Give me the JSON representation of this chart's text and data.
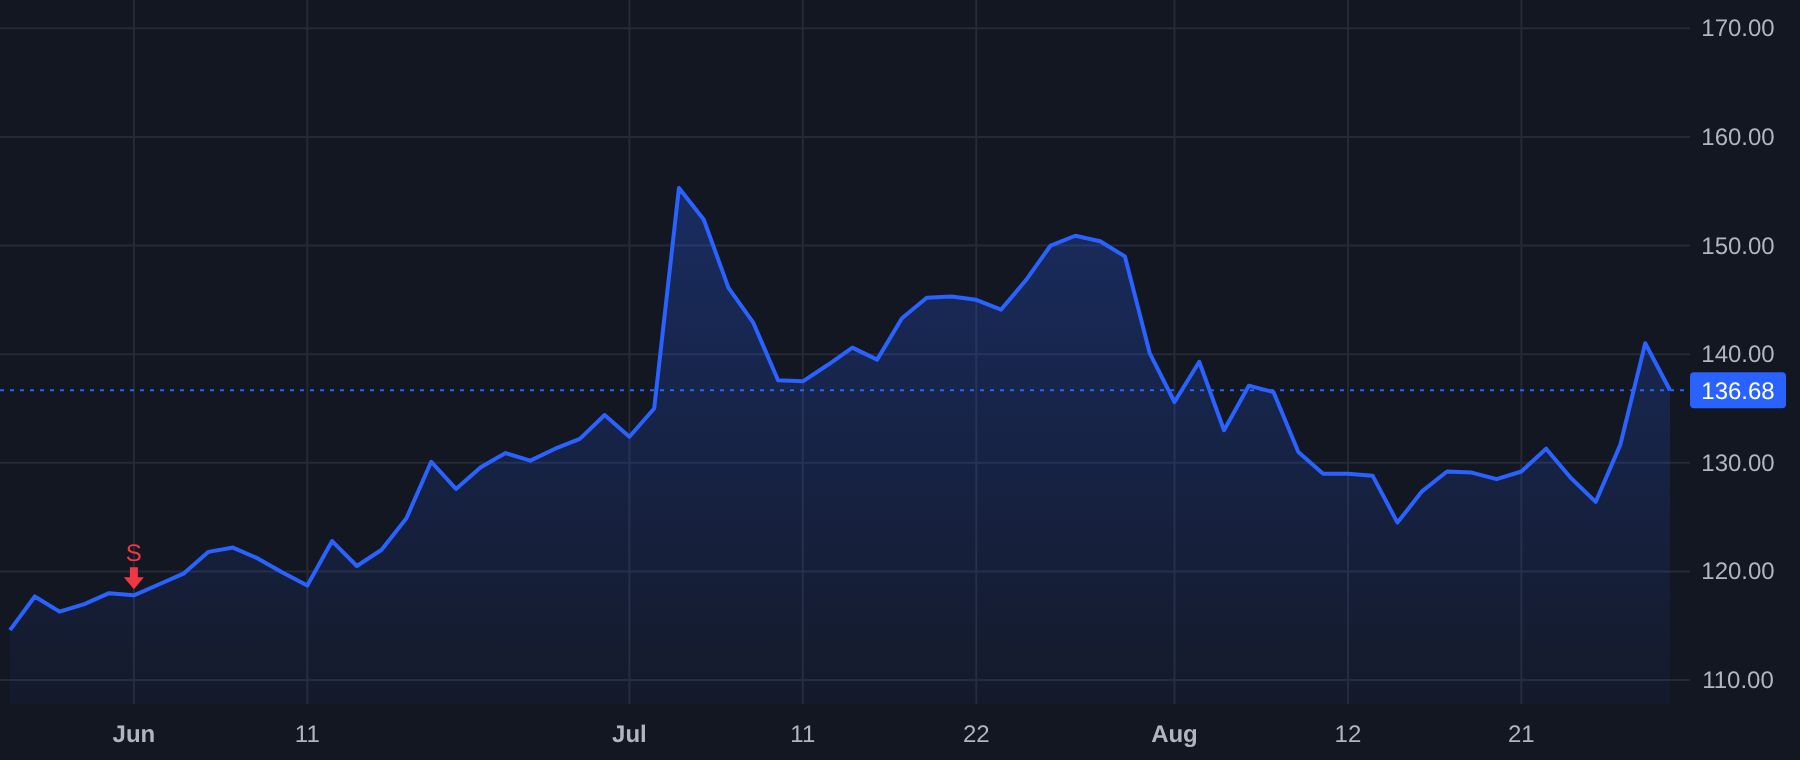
{
  "chart_data": {
    "type": "area",
    "categories": [
      null,
      null,
      null,
      null,
      null,
      "Jun",
      null,
      null,
      null,
      null,
      null,
      null,
      "11",
      null,
      null,
      null,
      null,
      null,
      null,
      null,
      null,
      null,
      null,
      null,
      null,
      "Jul",
      null,
      null,
      null,
      null,
      null,
      null,
      "11",
      null,
      null,
      null,
      null,
      null,
      null,
      "22",
      null,
      null,
      null,
      null,
      null,
      null,
      null,
      "Aug",
      null,
      null,
      null,
      null,
      null,
      null,
      "12",
      null,
      null,
      null,
      null,
      null,
      null,
      "21",
      null,
      null,
      null,
      null,
      null,
      null
    ],
    "series": [
      {
        "color": "#2962ff",
        "values": [
          114.6,
          117.7,
          116.3,
          117.0,
          118.0,
          117.8,
          118.8,
          119.8,
          121.8,
          122.2,
          121.2,
          119.9,
          118.7,
          122.8,
          120.5,
          122.0,
          124.9,
          130.1,
          127.6,
          129.6,
          130.9,
          130.2,
          131.3,
          132.2,
          134.4,
          132.4,
          135.0,
          155.3,
          152.4,
          146.1,
          142.9,
          137.6,
          137.5,
          139.0,
          140.6,
          139.5,
          143.3,
          145.2,
          145.3,
          145.0,
          144.1,
          146.8,
          150.0,
          150.9,
          150.4,
          149.0,
          140.1,
          135.6,
          139.3,
          133.0,
          137.1,
          136.5,
          131.0,
          129.0,
          129.0,
          128.8,
          124.5,
          127.4,
          129.2,
          129.1,
          128.5,
          129.2,
          131.3,
          128.6,
          126.4,
          131.7,
          141.0,
          136.68
        ]
      }
    ],
    "ylim": [
      107.8,
      172.6
    ],
    "yticks": [
      {
        "value": 110,
        "label": "110.00"
      },
      {
        "value": 120,
        "label": "120.00"
      },
      {
        "value": 130,
        "label": "130.00"
      },
      {
        "value": 140,
        "label": "140.00"
      },
      {
        "value": 150,
        "label": "150.00"
      },
      {
        "value": 160,
        "label": "160.00"
      },
      {
        "value": 170,
        "label": "170.00"
      }
    ],
    "grid": true,
    "ref_lines": [
      {
        "axis": "y",
        "value": 136.68,
        "label": "136.68",
        "color": "#2962ff",
        "line_style": "dotted"
      }
    ],
    "annotations": [
      {
        "text": "S",
        "x": "Jun",
        "y": 117.8
      }
    ]
  }
}
